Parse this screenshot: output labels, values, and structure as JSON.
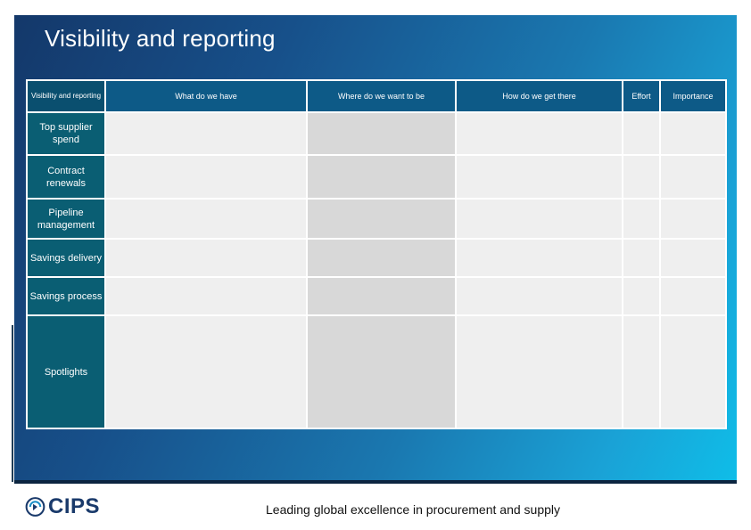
{
  "slide": {
    "title": "Visibility and reporting",
    "footer": "Leading global excellence in procurement and supply",
    "logo_text": "CIPS",
    "logo_icon": "cips-globe-icon"
  },
  "table": {
    "corner": "Visibility and reporting",
    "headers": [
      "What do we have",
      "Where do we want to be",
      "How do we get there",
      "Effort",
      "Importance"
    ],
    "rows": [
      "Top supplier spend",
      "Contract renewals",
      "Pipeline management",
      "Savings delivery",
      "Savings process",
      "Spotlights"
    ]
  },
  "colors": {
    "header_fill": "#0d5a87",
    "label_fill": "#0a5e73",
    "cell_light": "#efefef",
    "cell_dark": "#d8d8d8"
  }
}
